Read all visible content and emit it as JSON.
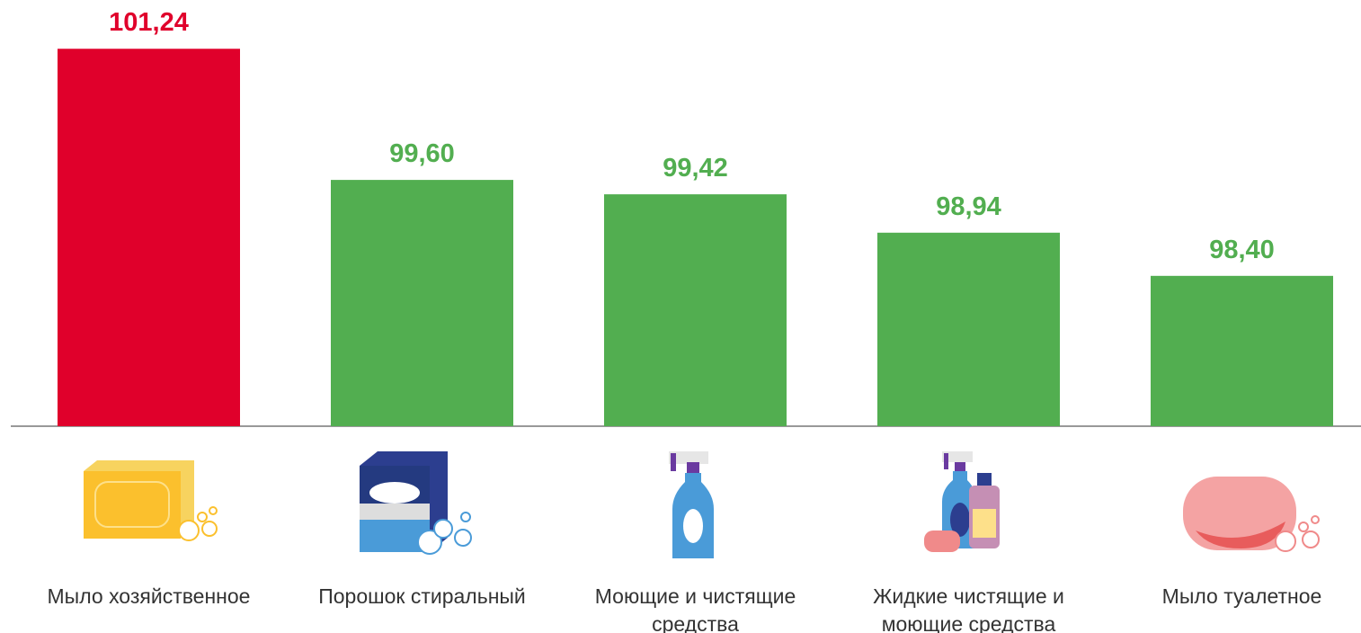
{
  "chart_data": {
    "type": "bar",
    "categories": [
      "Мыло хозяйственное",
      "Порошок стиральный",
      "Моющие и чистящие средства",
      "Жидкие чистящие и моющие средства",
      "Мыло туалетное"
    ],
    "values": [
      101.24,
      99.6,
      99.42,
      98.94,
      98.4
    ],
    "value_labels": [
      "101,24",
      "99,60",
      "99,42",
      "98,94",
      "98,40"
    ],
    "colors": [
      "#e0002b",
      "#52ae50",
      "#52ae50",
      "#52ae50",
      "#52ae50"
    ],
    "ylim": [
      96.52,
      101.85
    ]
  }
}
